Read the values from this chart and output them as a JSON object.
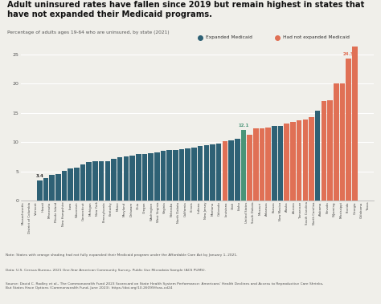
{
  "title_line1": "Adult uninsured rates have fallen since 2019 but remain highest in states that",
  "title_line2": "have not expanded their Medicaid programs.",
  "subtitle": "Percentage of adults ages 19-64 who are uninsured, by state (2021)",
  "states": [
    "Massachusetts",
    "District of Columbia",
    "Vermont",
    "Hawaii",
    "Minnesota",
    "Rhode Island",
    "New Hampshire",
    "Iowa",
    "Wisconsin",
    "Connecticut",
    "Michigan",
    "New York",
    "Pennsylvania",
    "Kentucky",
    "Maine",
    "Maryland",
    "Delaware",
    "Ohio",
    "Oregon",
    "Washington",
    "West Virginia",
    "Virginia",
    "Nebraska",
    "North Dakota",
    "California",
    "Illinois",
    "Indiana",
    "New Jersey",
    "Montana",
    "Colorado",
    "Louisiana",
    "Utah",
    "Idaho",
    "United States",
    "South Dakota",
    "Missouri",
    "Arkansas",
    "Kansas",
    "New Mexico",
    "Alaska",
    "Arizona",
    "Tennessee",
    "South Carolina",
    "North Carolina",
    "Alabama",
    "Nevada",
    "Wyoming",
    "Mississippi",
    "Florida",
    "Georgia",
    "Oklahoma",
    "Texas"
  ],
  "values": [
    3.4,
    3.9,
    4.4,
    4.6,
    5.1,
    5.5,
    5.7,
    6.2,
    6.6,
    6.7,
    6.7,
    6.8,
    7.2,
    7.4,
    7.5,
    7.7,
    7.9,
    8.0,
    8.1,
    8.3,
    8.5,
    8.6,
    8.7,
    8.8,
    8.9,
    9.1,
    9.4,
    9.5,
    9.6,
    9.7,
    10.1,
    10.3,
    10.5,
    12.1,
    11.2,
    12.3,
    12.4,
    12.5,
    12.7,
    12.7,
    13.2,
    13.5,
    13.7,
    13.8,
    14.2,
    15.4,
    17.0,
    17.2,
    20.0,
    20.0,
    24.3,
    26.3
  ],
  "expanded": [
    true,
    true,
    true,
    true,
    true,
    true,
    true,
    true,
    true,
    true,
    true,
    true,
    true,
    true,
    true,
    true,
    true,
    true,
    true,
    true,
    true,
    true,
    true,
    true,
    true,
    true,
    true,
    true,
    true,
    true,
    false,
    true,
    true,
    true,
    false,
    false,
    false,
    false,
    true,
    true,
    false,
    false,
    false,
    false,
    false,
    true,
    false,
    false,
    false,
    false,
    false,
    false
  ],
  "highlight_idx": 33,
  "highlight_value": "12.1",
  "color_expanded": "#2e6175",
  "color_not_expanded": "#e07055",
  "color_highlight": "#4a9478",
  "annotation_value_1": "3.4",
  "annotation_value_2": "24.3",
  "annotation_idx_2": 50,
  "ylim": [
    0,
    27
  ],
  "bg_color": "#f0efea",
  "grid_color": "#ffffff",
  "note": "Note: States with orange shading had not fully expanded their Medicaid program under the Affordable Care Act by January 1, 2021.",
  "data_note": "Data: U.S. Census Bureau, 2021 One-Year American Community Survey, Public Use Microdata Sample (ACS PUMS).",
  "source_note": "Source: David C. Radley et al., The Commonwealth Fund 2023 Scorecard on State Health System Performance: Americans' Health Declines and Access to Reproductive Care Shrinks,\nBut States Have Options (Commonwealth Fund, June 2023). https://doi.org/10.26099/fcas-cd24"
}
